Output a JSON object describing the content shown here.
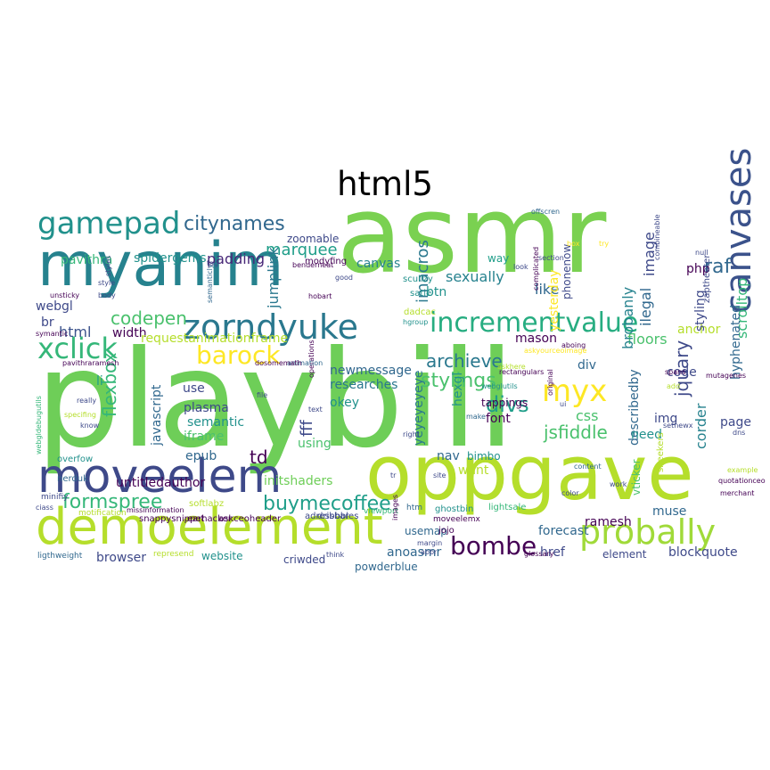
{
  "title": "html5",
  "palette": {
    "yellow_green": "#b5de2b",
    "green": "#6ece58",
    "teal": "#35b779",
    "sea": "#1f9e89",
    "blue_teal": "#26828e",
    "slate": "#31688e",
    "indigo": "#3e4989",
    "purple": "#482878",
    "dark_purple": "#440154",
    "yellow": "#fde725"
  },
  "words": [
    {
      "text": "asmr",
      "color": "#7ad151"
    },
    {
      "text": "playbill",
      "color": "#6ece58"
    },
    {
      "text": "myanim",
      "color": "#26828e"
    },
    {
      "text": "oppgave",
      "color": "#b5de2b"
    },
    {
      "text": "demoelement",
      "color": "#b5de2b"
    },
    {
      "text": "moveelem",
      "color": "#3e4989"
    },
    {
      "text": "zorndyuke",
      "color": "#2a788e"
    },
    {
      "text": "gamepad",
      "color": "#21918c"
    },
    {
      "text": "canvases",
      "color": "#3b528b"
    },
    {
      "text": "probally",
      "color": "#a0da39"
    },
    {
      "text": "incrementvalue",
      "color": "#27ad81"
    },
    {
      "text": "xclick",
      "color": "#35b779"
    },
    {
      "text": "barock",
      "color": "#fde725"
    },
    {
      "text": "myx",
      "color": "#fde725"
    },
    {
      "text": "bombe",
      "color": "#440154"
    },
    {
      "text": "citynames",
      "color": "#31688e"
    },
    {
      "text": "formspree",
      "color": "#35b779"
    },
    {
      "text": "buymecoffee",
      "color": "#1f9e89"
    },
    {
      "text": "stylings",
      "color": "#4ac16d"
    },
    {
      "text": "divs",
      "color": "#1f9e89"
    },
    {
      "text": "codepen",
      "color": "#4ac16d"
    },
    {
      "text": "archieve",
      "color": "#2a788e"
    },
    {
      "text": "flexbox",
      "color": "#35b779"
    },
    {
      "text": "jsfiddle",
      "color": "#4ac16d"
    },
    {
      "text": "jquary",
      "color": "#3e4989"
    },
    {
      "text": "raf",
      "color": "#31688e"
    },
    {
      "text": "marquee",
      "color": "#1f9e89"
    },
    {
      "text": "padding",
      "color": "#482878"
    },
    {
      "text": "spidergems",
      "color": "#21918c"
    },
    {
      "text": "pavithra",
      "color": "#35b779"
    },
    {
      "text": "zoomable",
      "color": "#3e4989"
    },
    {
      "text": "jumplink",
      "color": "#2a788e"
    },
    {
      "text": "canvas",
      "color": "#26828e"
    },
    {
      "text": "like",
      "color": "#31688e"
    },
    {
      "text": "way",
      "color": "#1f9e89"
    },
    {
      "text": "image",
      "color": "#3e4989"
    },
    {
      "text": "php",
      "color": "#440154"
    },
    {
      "text": "imacros",
      "color": "#2a788e"
    },
    {
      "text": "sexually",
      "color": "#26828e"
    },
    {
      "text": "btn",
      "color": "#21918c"
    },
    {
      "text": "webgl",
      "color": "#3e4989"
    },
    {
      "text": "html",
      "color": "#3b528b"
    },
    {
      "text": "width",
      "color": "#440154"
    },
    {
      "text": "br",
      "color": "#3e4989"
    },
    {
      "text": "li",
      "color": "#1f9e89"
    },
    {
      "text": "requestanimationframe",
      "color": "#b5de2b"
    },
    {
      "text": "newmessage",
      "color": "#31688e"
    },
    {
      "text": "researches",
      "color": "#2a788e"
    },
    {
      "text": "okey",
      "color": "#21918c"
    },
    {
      "text": "use",
      "color": "#3e4989"
    },
    {
      "text": "javascript",
      "color": "#31688e"
    },
    {
      "text": "plasma",
      "color": "#3e4989"
    },
    {
      "text": "semantic",
      "color": "#21918c"
    },
    {
      "text": "iframe",
      "color": "#4ac16d"
    },
    {
      "text": "epub",
      "color": "#31688e"
    },
    {
      "text": "td",
      "color": "#440154"
    },
    {
      "text": "fff",
      "color": "#3e4989"
    },
    {
      "text": "using",
      "color": "#4ac16d"
    },
    {
      "text": "untitledauthor",
      "color": "#440154"
    },
    {
      "text": "initshaders",
      "color": "#6ece58"
    },
    {
      "text": "mason",
      "color": "#440154"
    },
    {
      "text": "div",
      "color": "#31688e"
    },
    {
      "text": "floors",
      "color": "#4ac16d"
    },
    {
      "text": "anchor",
      "color": "#b5de2b"
    },
    {
      "text": "styling",
      "color": "#3e4989"
    },
    {
      "text": "scrolltop",
      "color": "#35b779"
    },
    {
      "text": "hyphenated",
      "color": "#31688e"
    },
    {
      "text": "code",
      "color": "#3e4989"
    },
    {
      "text": "corder",
      "color": "#26828e"
    },
    {
      "text": "page",
      "color": "#3e4989"
    },
    {
      "text": "img",
      "color": "#3e4989"
    },
    {
      "text": "describedby",
      "color": "#31688e"
    },
    {
      "text": "css",
      "color": "#4ac16d"
    },
    {
      "text": "font",
      "color": "#440154"
    },
    {
      "text": "hexgl",
      "color": "#21918c"
    },
    {
      "text": "yeyeyeyeye",
      "color": "#2a788e"
    },
    {
      "text": "need",
      "color": "#21918c"
    },
    {
      "text": "nav",
      "color": "#31688e"
    },
    {
      "text": "want",
      "color": "#b5de2b"
    },
    {
      "text": "forecast",
      "color": "#31688e"
    },
    {
      "text": "href",
      "color": "#3e4989"
    },
    {
      "text": "ramesh",
      "color": "#440154"
    },
    {
      "text": "muse",
      "color": "#31688e"
    },
    {
      "text": "element",
      "color": "#3e4989"
    },
    {
      "text": "blockquote",
      "color": "#3e4989"
    },
    {
      "text": "usemap",
      "color": "#31688e"
    },
    {
      "text": "anoasmr",
      "color": "#31688e"
    },
    {
      "text": "criwded",
      "color": "#3e4989"
    },
    {
      "text": "website",
      "color": "#21918c"
    },
    {
      "text": "browser",
      "color": "#3e4989"
    },
    {
      "text": "brobanly",
      "color": "#26828e"
    },
    {
      "text": "ilegal",
      "color": "#31688e"
    },
    {
      "text": "phonenow",
      "color": "#3e4989"
    },
    {
      "text": "yesterday",
      "color": "#fde725"
    },
    {
      "text": "zaptheater",
      "color": "#3e4989"
    },
    {
      "text": "vticker",
      "color": "#4ac16d"
    },
    {
      "text": "bimbo",
      "color": "#21918c"
    },
    {
      "text": "tappings",
      "color": "#440154"
    },
    {
      "text": "scullzy",
      "color": "#21918c"
    },
    {
      "text": "satie",
      "color": "#21918c"
    },
    {
      "text": "modyfing",
      "color": "#440154"
    },
    {
      "text": "softlabz",
      "color": "#b5de2b"
    },
    {
      "text": "askceoheader",
      "color": "#440154"
    },
    {
      "text": "earhacker",
      "color": "#440154"
    },
    {
      "text": "snappysnippet",
      "color": "#440154"
    },
    {
      "text": "missinformation",
      "color": "#440154"
    },
    {
      "text": "motification",
      "color": "#b5de2b"
    },
    {
      "text": "overfow",
      "color": "#21918c"
    },
    {
      "text": "minifiy",
      "color": "#3e4989"
    },
    {
      "text": "nerduk",
      "color": "#31688e"
    },
    {
      "text": "ciass",
      "color": "#3e4989"
    },
    {
      "text": "ligthweight",
      "color": "#31688e"
    },
    {
      "text": "represend",
      "color": "#b5de2b"
    },
    {
      "text": "adressbar",
      "color": "#3e4989"
    },
    {
      "text": "dribbbles",
      "color": "#3e4989"
    },
    {
      "text": "viewport",
      "color": "#35b779"
    },
    {
      "text": "htm",
      "color": "#31688e"
    },
    {
      "text": "ghostbin",
      "color": "#21918c"
    },
    {
      "text": "moveelemx",
      "color": "#440154"
    },
    {
      "text": "jojo",
      "color": "#440154"
    },
    {
      "text": "lightsale",
      "color": "#35b779"
    },
    {
      "text": "powderblue",
      "color": "#31688e"
    },
    {
      "text": "think",
      "color": "#3e4989"
    },
    {
      "text": "margin",
      "color": "#3e4989"
    },
    {
      "text": "abbr",
      "color": "#3e4989"
    },
    {
      "text": "glossary",
      "color": "#440154"
    },
    {
      "text": "sneekers",
      "color": "#b5de2b"
    },
    {
      "text": "quotationceo",
      "color": "#440154"
    },
    {
      "text": "merchant",
      "color": "#440154"
    },
    {
      "text": "example",
      "color": "#b5de2b"
    },
    {
      "text": "work",
      "color": "#3e4989"
    },
    {
      "text": "color",
      "color": "#3e4989"
    },
    {
      "text": "content",
      "color": "#31688e"
    },
    {
      "text": "site",
      "color": "#3e4989"
    },
    {
      "text": "tr",
      "color": "#3e4989"
    },
    {
      "text": "dns",
      "color": "#3e4989"
    },
    {
      "text": "setnewx",
      "color": "#3e4989"
    },
    {
      "text": "ui",
      "color": "#3e4989"
    },
    {
      "text": "add",
      "color": "#b5de2b"
    },
    {
      "text": "spans",
      "color": "#440154"
    },
    {
      "text": "mutagenes",
      "color": "#440154"
    },
    {
      "text": "aboing",
      "color": "#440154"
    },
    {
      "text": "askyourceoimage",
      "color": "#fde725"
    },
    {
      "text": "askhere",
      "color": "#b5de2b"
    },
    {
      "text": "rectangulars",
      "color": "#440154"
    },
    {
      "text": "webglutils",
      "color": "#21918c"
    },
    {
      "text": "original",
      "color": "#440154"
    },
    {
      "text": "make",
      "color": "#31688e"
    },
    {
      "text": "right",
      "color": "#3e4989"
    },
    {
      "text": "hgroup",
      "color": "#21918c"
    },
    {
      "text": "dadcac",
      "color": "#b5de2b"
    },
    {
      "text": "operations",
      "color": "#440154"
    },
    {
      "text": "animation",
      "color": "#31688e"
    },
    {
      "text": "dosomemath",
      "color": "#440154"
    },
    {
      "text": "pavithraramesh",
      "color": "#440154"
    },
    {
      "text": "symantic",
      "color": "#440154"
    },
    {
      "text": "unsticky",
      "color": "#440154"
    },
    {
      "text": "body",
      "color": "#3e4989"
    },
    {
      "text": "style",
      "color": "#3e4989"
    },
    {
      "text": "really",
      "color": "#3e4989"
    },
    {
      "text": "specifing",
      "color": "#b5de2b"
    },
    {
      "text": "know",
      "color": "#3e4989"
    },
    {
      "text": "webgldebugutils",
      "color": "#35b779"
    },
    {
      "text": "file",
      "color": "#3e4989"
    },
    {
      "text": "text",
      "color": "#3e4989"
    },
    {
      "text": "hobart",
      "color": "#440154"
    },
    {
      "text": "good",
      "color": "#3e4989"
    },
    {
      "text": "benderneat",
      "color": "#440154"
    },
    {
      "text": "tag",
      "color": "#3e4989"
    },
    {
      "text": "semanticly",
      "color": "#31688e"
    },
    {
      "text": "styles",
      "color": "#3e4989"
    },
    {
      "text": "look",
      "color": "#3e4989"
    },
    {
      "text": "section",
      "color": "#3e4989"
    },
    {
      "text": "combineable",
      "color": "#3e4989"
    },
    {
      "text": "offscren",
      "color": "#31688e"
    },
    {
      "text": "try",
      "color": "#fde725"
    },
    {
      "text": "box",
      "color": "#fde725"
    },
    {
      "text": "null",
      "color": "#3e4989"
    },
    {
      "text": "images",
      "color": "#440154"
    },
    {
      "text": "complicated",
      "color": "#440154"
    }
  ]
}
